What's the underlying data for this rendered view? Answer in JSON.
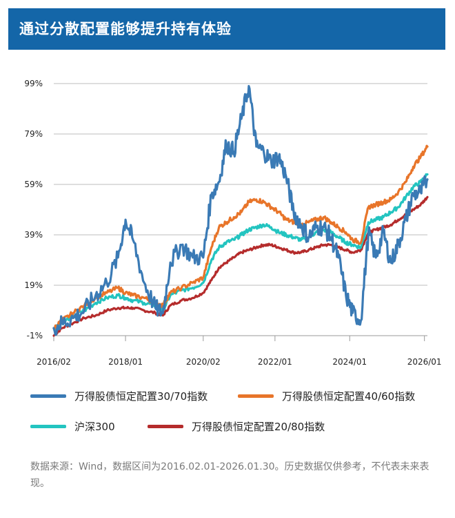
{
  "header": {
    "title": "通过分散配置能够提升持有体验"
  },
  "note": {
    "text": "数据来源：Wind，数据区间为2016.02.01-2026.01.30。历史数据仅供参考，不代表未来表现。"
  },
  "chart_data": {
    "type": "line",
    "title": "通过分散配置能够提升持有体验",
    "yticks": [
      "99%",
      "79%",
      "59%",
      "39%",
      "19%",
      "-1%"
    ],
    "ytick_values": [
      99,
      79,
      59,
      39,
      19,
      -1
    ],
    "ylim": [
      -1,
      99
    ],
    "xticks": [
      "2016/02",
      "2018/01",
      "2020/02",
      "2022/01",
      "2024/01",
      "2026/01"
    ],
    "xtick_values": [
      2016.08,
      2018.0,
      2020.08,
      2022.0,
      2024.0,
      2026.0
    ],
    "xlim": [
      2016.08,
      2026.08
    ],
    "grid": "horizontal",
    "legend_position": "bottom",
    "series": [
      {
        "name": "万得股债恒定配置30/70指数",
        "color": "#3a7ab5",
        "x": [
          2016.08,
          2016.3,
          2016.6,
          2016.9,
          2017.2,
          2017.5,
          2017.8,
          2018.0,
          2018.2,
          2018.5,
          2018.8,
          2019.0,
          2019.2,
          2019.5,
          2019.8,
          2020.08,
          2020.3,
          2020.5,
          2020.7,
          2020.9,
          2021.1,
          2021.3,
          2021.5,
          2021.7,
          2021.9,
          2022.1,
          2022.3,
          2022.5,
          2022.7,
          2022.9,
          2023.1,
          2023.3,
          2023.5,
          2023.7,
          2023.9,
          2024.08,
          2024.3,
          2024.5,
          2024.7,
          2024.9,
          2025.1,
          2025.3,
          2025.5,
          2025.7,
          2025.9,
          2026.08
        ],
        "values": [
          2,
          4,
          6,
          9,
          15,
          20,
          30,
          45,
          37,
          20,
          10,
          8,
          28,
          35,
          30,
          30,
          55,
          60,
          75,
          72,
          85,
          98,
          74,
          72,
          68,
          70,
          62,
          48,
          43,
          38,
          42,
          42,
          38,
          30,
          15,
          8,
          5,
          40,
          30,
          40,
          28,
          35,
          45,
          55,
          56,
          61
        ]
      },
      {
        "name": "万得股债恒定配置40/60指数",
        "color": "#e8752a",
        "x": [
          2016.08,
          2016.3,
          2016.6,
          2016.9,
          2017.2,
          2017.5,
          2017.8,
          2018.0,
          2018.2,
          2018.5,
          2018.8,
          2019.0,
          2019.2,
          2019.5,
          2019.8,
          2020.08,
          2020.3,
          2020.5,
          2020.7,
          2020.9,
          2021.1,
          2021.3,
          2021.5,
          2021.7,
          2021.9,
          2022.1,
          2022.3,
          2022.5,
          2022.7,
          2022.9,
          2023.1,
          2023.3,
          2023.5,
          2023.7,
          2023.9,
          2024.08,
          2024.3,
          2024.5,
          2024.7,
          2024.9,
          2025.1,
          2025.3,
          2025.5,
          2025.7,
          2025.9,
          2026.08
        ],
        "values": [
          2,
          5,
          8,
          11,
          14,
          16,
          18,
          16,
          15,
          14,
          12,
          11,
          16,
          18,
          20,
          22,
          34,
          42,
          44,
          46,
          48,
          52,
          53,
          52,
          50,
          48,
          45,
          44,
          43,
          44,
          45,
          46,
          44,
          42,
          40,
          37,
          36,
          50,
          51,
          52,
          53,
          56,
          60,
          66,
          70,
          74
        ]
      },
      {
        "name": "沪深300",
        "color": "#23c4c0",
        "x": [
          2016.08,
          2016.3,
          2016.6,
          2016.9,
          2017.2,
          2017.5,
          2017.8,
          2018.0,
          2018.2,
          2018.5,
          2018.8,
          2019.0,
          2019.2,
          2019.5,
          2019.8,
          2020.08,
          2020.3,
          2020.5,
          2020.7,
          2020.9,
          2021.1,
          2021.3,
          2021.5,
          2021.7,
          2021.9,
          2022.1,
          2022.3,
          2022.5,
          2022.7,
          2022.9,
          2023.1,
          2023.3,
          2023.5,
          2023.7,
          2023.9,
          2024.08,
          2024.3,
          2024.5,
          2024.7,
          2024.9,
          2025.1,
          2025.3,
          2025.5,
          2025.7,
          2025.9,
          2026.08
        ],
        "values": [
          2,
          4,
          7,
          9,
          12,
          14,
          15,
          14,
          13,
          12,
          11,
          9,
          15,
          17,
          18,
          20,
          29,
          34,
          36,
          37,
          39,
          41,
          42,
          43,
          42,
          40,
          39,
          38,
          37,
          38,
          40,
          41,
          40,
          38,
          36,
          35,
          34,
          44,
          45,
          46,
          48,
          50,
          54,
          58,
          60,
          63
        ]
      },
      {
        "name": "万得股债恒定配置20/80指数",
        "color": "#b52c2c",
        "x": [
          2016.08,
          2016.3,
          2016.6,
          2016.9,
          2017.2,
          2017.5,
          2017.8,
          2018.0,
          2018.2,
          2018.5,
          2018.8,
          2019.0,
          2019.2,
          2019.5,
          2019.8,
          2020.08,
          2020.3,
          2020.5,
          2020.7,
          2020.9,
          2021.1,
          2021.3,
          2021.5,
          2021.7,
          2021.9,
          2022.1,
          2022.3,
          2022.5,
          2022.7,
          2022.9,
          2023.1,
          2023.3,
          2023.5,
          2023.7,
          2023.9,
          2024.08,
          2024.3,
          2024.5,
          2024.7,
          2024.9,
          2025.1,
          2025.3,
          2025.5,
          2025.7,
          2025.9,
          2026.08
        ],
        "values": [
          -1,
          2,
          4,
          6,
          7,
          9,
          10,
          10,
          10,
          9,
          8,
          7,
          11,
          13,
          14,
          16,
          21,
          26,
          28,
          30,
          32,
          33,
          34,
          35,
          35,
          34,
          33,
          32,
          32,
          33,
          34,
          35,
          35,
          34,
          33,
          32,
          33,
          40,
          41,
          42,
          43,
          45,
          47,
          49,
          51,
          54
        ]
      }
    ]
  }
}
